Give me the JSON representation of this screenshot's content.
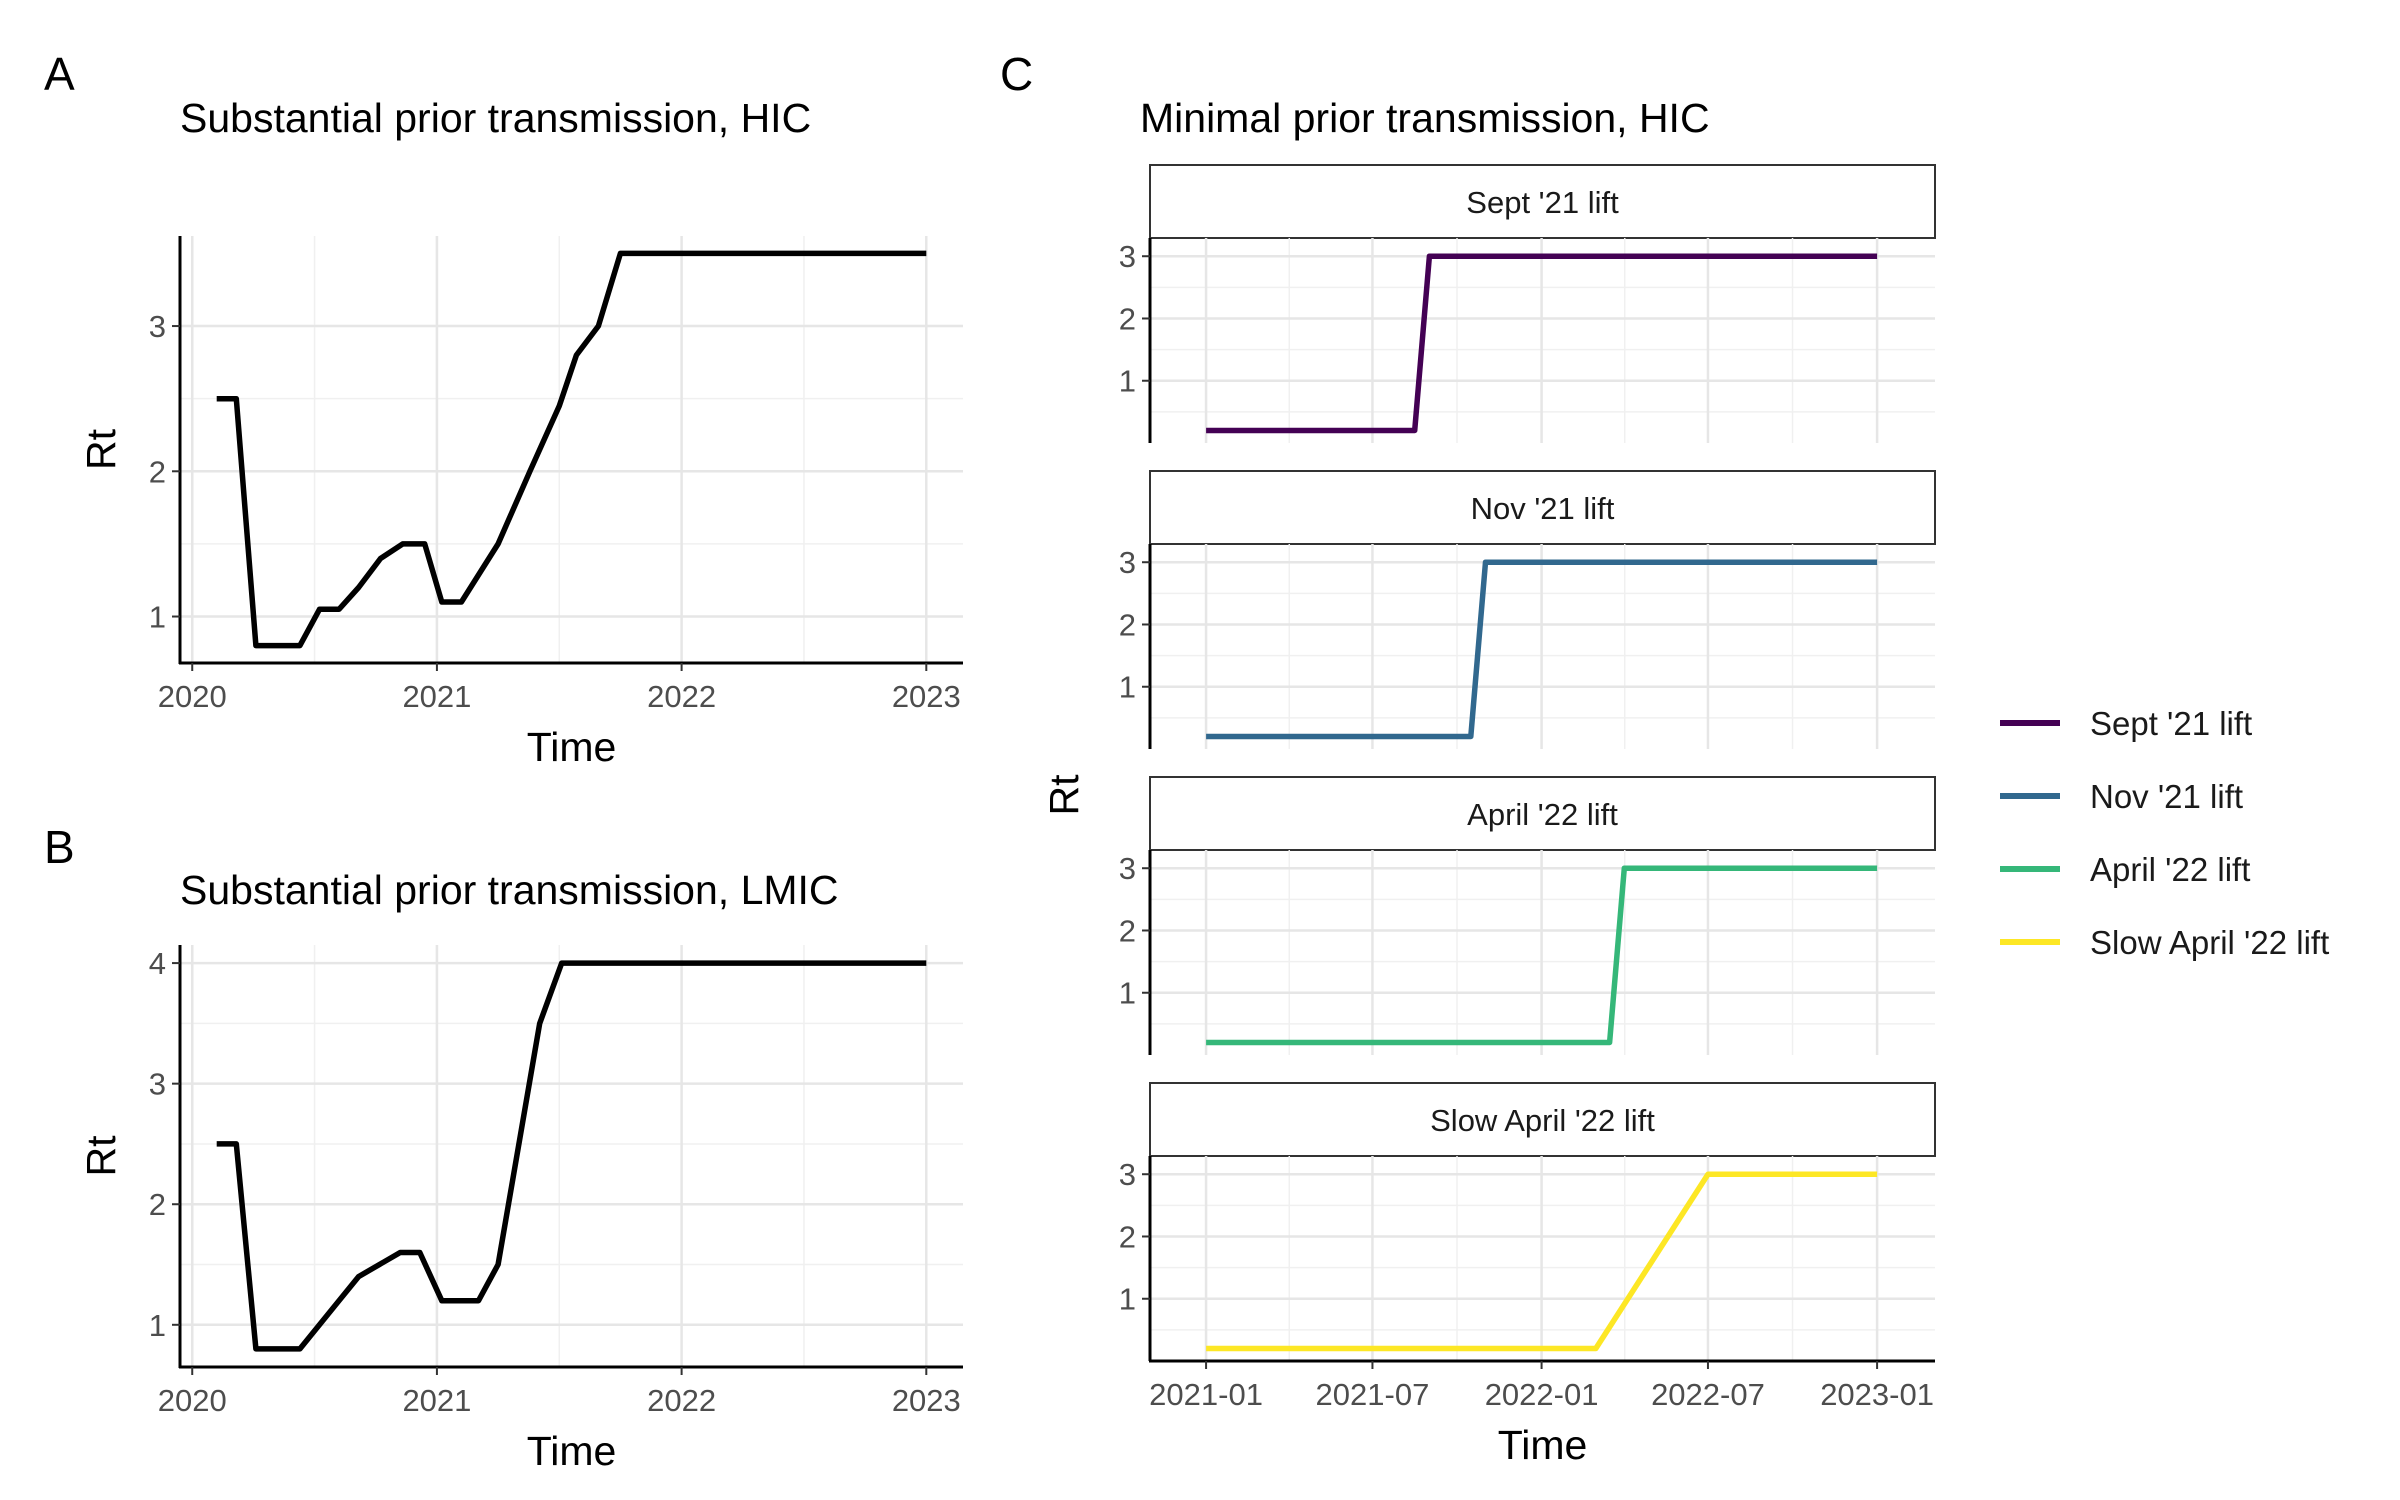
{
  "chart_data": [
    {
      "panel": "A",
      "type": "line",
      "title": "Substantial prior transmission, HIC",
      "xlabel": "Time",
      "ylabel": "Rt",
      "x_ticks": [
        "2020",
        "2021",
        "2022",
        "2023"
      ],
      "y_ticks": [
        "1",
        "2",
        "3"
      ],
      "xlim": [
        2019.95,
        2023.15
      ],
      "ylim": [
        0.68,
        3.62
      ],
      "grid": true,
      "series": [
        {
          "color": "#000000",
          "x": [
            2020.1,
            2020.18,
            2020.26,
            2020.44,
            2020.52,
            2020.6,
            2020.68,
            2020.77,
            2020.86,
            2020.95,
            2021.02,
            2021.1,
            2021.25,
            2021.38,
            2021.5,
            2021.57,
            2021.66,
            2021.75,
            2021.83,
            2023.0
          ],
          "y": [
            2.5,
            2.5,
            0.8,
            0.8,
            1.05,
            1.05,
            1.2,
            1.4,
            1.5,
            1.5,
            1.1,
            1.1,
            1.5,
            2.0,
            2.45,
            2.8,
            3.0,
            3.5,
            3.5,
            3.5
          ]
        }
      ]
    },
    {
      "panel": "B",
      "type": "line",
      "title": "Substantial prior transmission, LMIC",
      "xlabel": "Time",
      "ylabel": "Rt",
      "x_ticks": [
        "2020",
        "2021",
        "2022",
        "2023"
      ],
      "y_ticks": [
        "1",
        "2",
        "3",
        "4"
      ],
      "xlim": [
        2019.95,
        2023.15
      ],
      "ylim": [
        0.65,
        4.15
      ],
      "grid": true,
      "series": [
        {
          "color": "#000000",
          "x": [
            2020.1,
            2020.18,
            2020.26,
            2020.44,
            2020.6,
            2020.68,
            2020.85,
            2020.93,
            2021.02,
            2021.17,
            2021.25,
            2021.42,
            2021.51,
            2023.0
          ],
          "y": [
            2.5,
            2.5,
            0.8,
            0.8,
            1.2,
            1.4,
            1.6,
            1.6,
            1.2,
            1.2,
            1.5,
            3.5,
            4.0,
            4.0
          ]
        }
      ]
    },
    {
      "panel": "C",
      "type": "line",
      "title": "Minimal prior transmission, HIC",
      "xlabel": "Time",
      "ylabel": "Rt",
      "x_ticks": [
        "2021-01",
        "2021-07",
        "2022-01",
        "2022-07",
        "2023-01"
      ],
      "y_ticks": [
        "1",
        "2",
        "3"
      ],
      "xlim": [
        "2020-11-01",
        "2023-03-05"
      ],
      "ylim": [
        0.0,
        3.1
      ],
      "grid": true,
      "facets": [
        {
          "strip": "Sept '21 lift",
          "color": "#440154",
          "x": [
            "2021-01-01",
            "2021-08-16",
            "2021-09-01",
            "2023-01-01"
          ],
          "y": [
            0.2,
            0.2,
            3.0,
            3.0
          ]
        },
        {
          "strip": "Nov '21 lift",
          "color": "#31688E",
          "x": [
            "2021-01-01",
            "2021-10-16",
            "2021-11-01",
            "2023-01-01"
          ],
          "y": [
            0.2,
            0.2,
            3.0,
            3.0
          ]
        },
        {
          "strip": "April '22 lift",
          "color": "#35B779",
          "x": [
            "2021-01-01",
            "2022-03-16",
            "2022-04-01",
            "2023-01-01"
          ],
          "y": [
            0.2,
            0.2,
            3.0,
            3.0
          ]
        },
        {
          "strip": "Slow April '22 lift",
          "color": "#FDE725",
          "x": [
            "2021-01-01",
            "2022-03-01",
            "2022-07-01",
            "2023-01-01"
          ],
          "y": [
            0.2,
            0.2,
            3.0,
            3.0
          ]
        }
      ],
      "legend": {
        "placement": "right",
        "entries": [
          {
            "label": "Sept '21 lift",
            "color": "#440154"
          },
          {
            "label": "Nov '21 lift",
            "color": "#31688E"
          },
          {
            "label": "April '22 lift",
            "color": "#35B779"
          },
          {
            "label": "Slow April '22 lift",
            "color": "#FDE725"
          }
        ]
      }
    }
  ]
}
